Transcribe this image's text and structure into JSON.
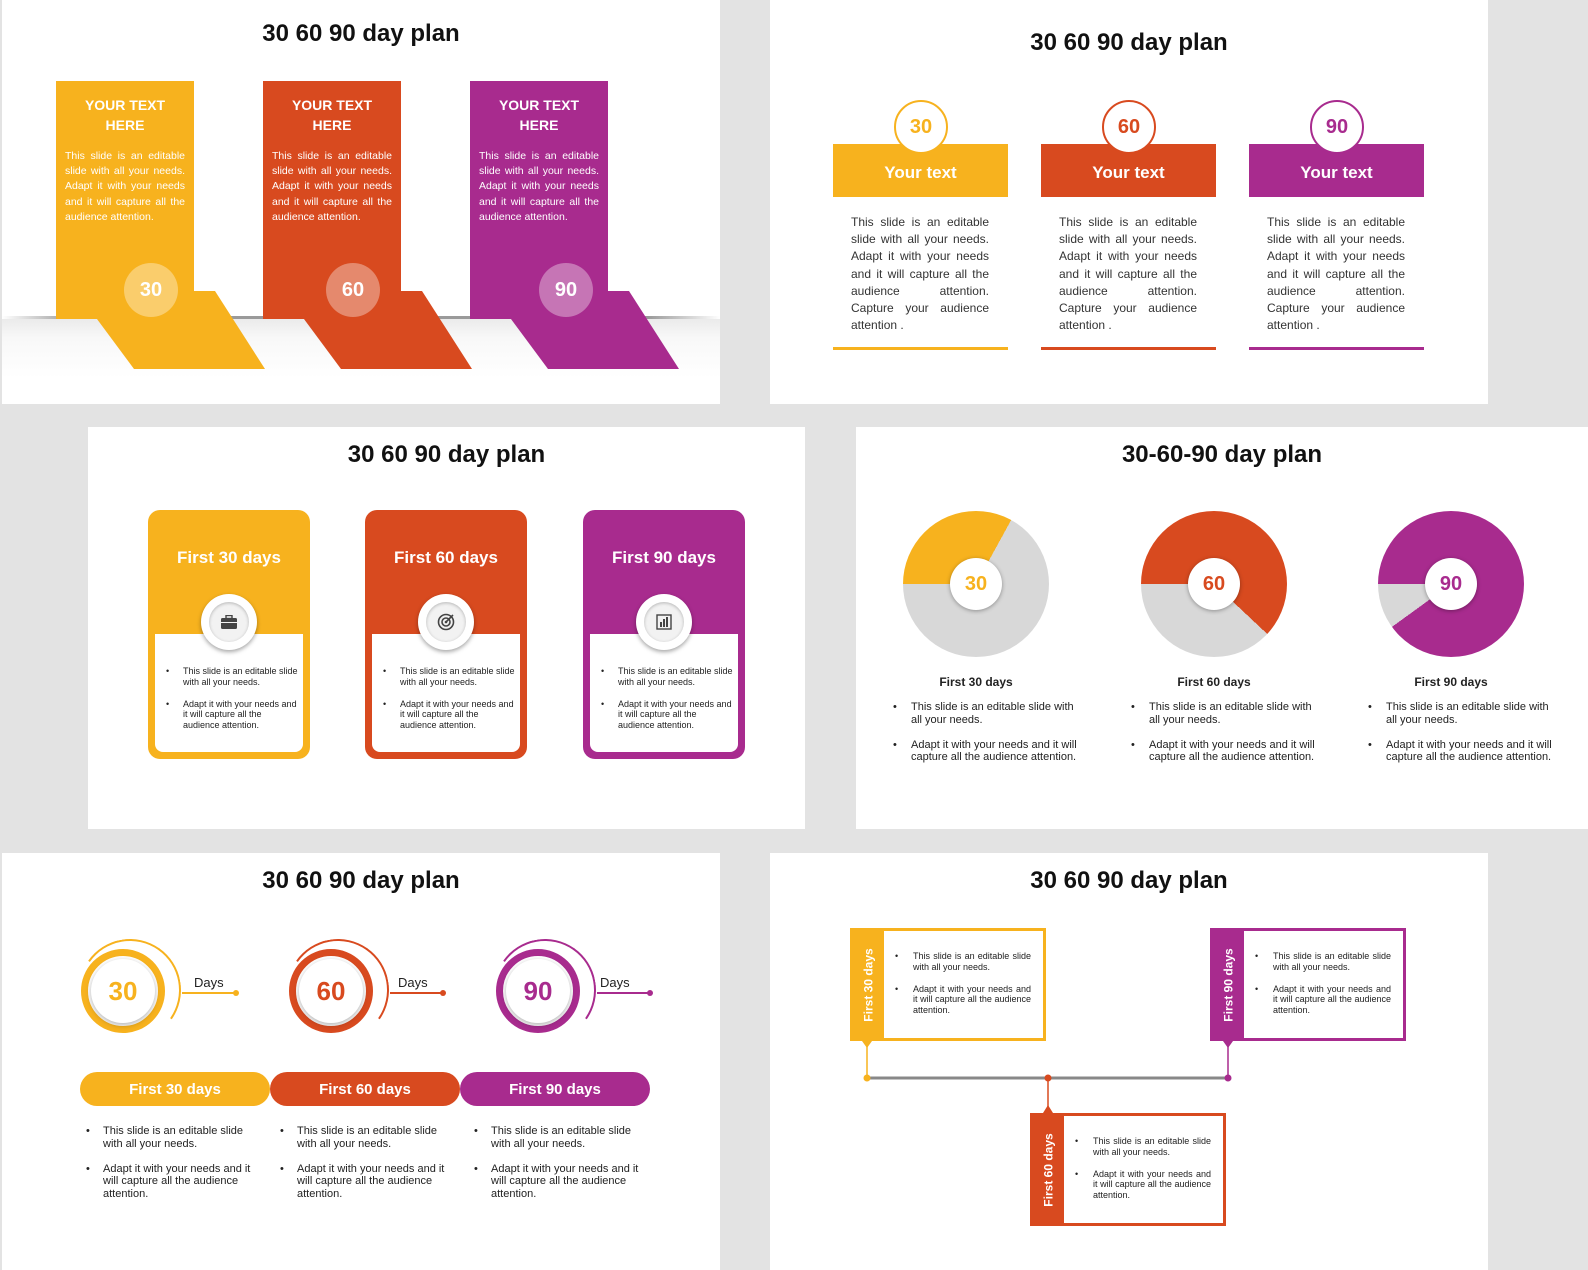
{
  "colors": {
    "yellow": "#f7b21e",
    "orange": "#d84a1f",
    "purple": "#a82b8e",
    "gray": "#d8d8d8"
  },
  "slide1": {
    "title": "30 60 90 day plan",
    "columns": [
      {
        "heading": "YOUR TEXT HERE",
        "body": "This slide is an editable slide with all your needs. Adapt it with your needs and it will capture all the audience attention.",
        "number": "30"
      },
      {
        "heading": "YOUR TEXT HERE",
        "body": "This slide is an editable slide with all your needs. Adapt it with your needs and it will capture all the audience attention.",
        "number": "60"
      },
      {
        "heading": "YOUR TEXT HERE",
        "body": "This slide is an editable slide with all your needs. Adapt it with your needs and it will capture all the audience attention.",
        "number": "90"
      }
    ]
  },
  "slide2": {
    "title": "30 60 90 day plan",
    "columns": [
      {
        "number": "30",
        "label": "Your text",
        "body": "This slide is an editable slide with all your needs. Adapt it with your needs and it will capture all the audience attention. Capture your audience attention ."
      },
      {
        "number": "60",
        "label": "Your text",
        "body": "This slide is an editable slide with all your needs. Adapt it with your needs and it will capture all the audience attention. Capture your audience attention ."
      },
      {
        "number": "90",
        "label": "Your text",
        "body": "This slide is an editable slide with all your needs. Adapt it with your needs and it will capture all the audience attention. Capture your audience attention ."
      }
    ]
  },
  "slide3": {
    "title": "30 60 90 day plan",
    "cards": [
      {
        "heading": "First 30 days",
        "icon": "briefcase-icon",
        "bullets": [
          "This slide is an editable slide with all your needs.",
          "Adapt it with your needs and it will capture all the audience attention."
        ]
      },
      {
        "heading": "First 60 days",
        "icon": "target-icon",
        "bullets": [
          "This slide is an editable slide with all your needs.",
          "Adapt it with your needs and it will capture all the audience attention."
        ]
      },
      {
        "heading": "First 90 days",
        "icon": "bar-chart-icon",
        "bullets": [
          "This slide is an editable slide with all your needs.",
          "Adapt it with your needs and it will capture all the audience attention."
        ]
      }
    ]
  },
  "slide4": {
    "title": "30-60-90 day plan",
    "columns": [
      {
        "number": "30",
        "fraction": 0.33,
        "label": "First 30 days",
        "bullets": [
          "This slide is an editable slide with all your needs.",
          "Adapt it with your needs and it will capture all the audience attention."
        ]
      },
      {
        "number": "60",
        "fraction": 0.62,
        "label": "First 60 days",
        "bullets": [
          "This slide is an editable slide with all your needs.",
          "Adapt it with your needs and it will capture all the audience attention."
        ]
      },
      {
        "number": "90",
        "fraction": 0.9,
        "label": "First 90 days",
        "bullets": [
          "This slide is an editable slide with all your needs.",
          "Adapt it with your needs and it will capture all the audience attention."
        ]
      }
    ]
  },
  "slide5": {
    "title": "30 60 90 day plan",
    "columns": [
      {
        "number": "30",
        "days": "Days",
        "bar": "First 30 days",
        "bullets": [
          "This slide is an editable slide with all your needs.",
          "Adapt it with your needs and it will capture all the audience attention."
        ]
      },
      {
        "number": "60",
        "days": "Days",
        "bar": "First 60 days",
        "bullets": [
          "This slide is an editable slide with all your needs.",
          "Adapt it with your needs and it will capture all the audience attention."
        ]
      },
      {
        "number": "90",
        "days": "Days",
        "bar": "First 90 days",
        "bullets": [
          "This slide is an editable slide with all your needs.",
          "Adapt it with your needs and it will capture all the audience attention."
        ]
      }
    ]
  },
  "slide6": {
    "title": "30 60 90 day plan",
    "boxes": [
      {
        "tab": "First 30 days",
        "bullets": [
          "This slide is an editable slide with all your needs.",
          "Adapt it with your needs and it will capture all the audience attention."
        ]
      },
      {
        "tab": "First 60 days",
        "bullets": [
          "This slide is an editable slide with all your needs.",
          "Adapt it with your needs and it will capture all the audience attention."
        ]
      },
      {
        "tab": "First 90 days",
        "bullets": [
          "This slide is an editable slide with all your needs.",
          "Adapt it with your needs and it will capture all the audience attention."
        ]
      }
    ]
  }
}
